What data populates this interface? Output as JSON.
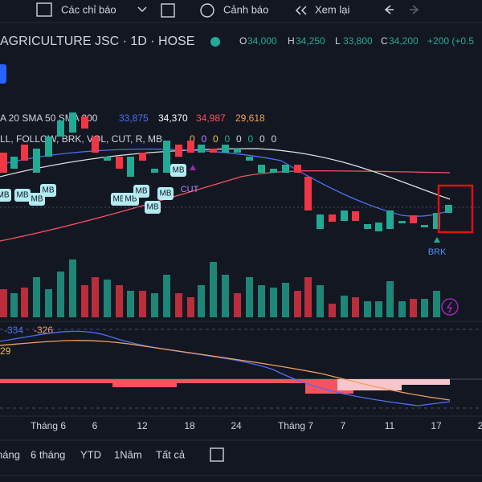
{
  "toolbar": {
    "indicators": "Các chỉ báo",
    "alerts": "Cảnh báo",
    "replay": "Xem lại"
  },
  "legend": {
    "symbol": "AGRICULTURE JSC · 1D · HOSE",
    "ohlc": [
      {
        "key": "O",
        "value": "34,000"
      },
      {
        "key": "H",
        "value": "34,250"
      },
      {
        "key": "L",
        "value": "33,800"
      },
      {
        "key": "C",
        "value": "34,200"
      }
    ],
    "change": "+200 (+0.5"
  },
  "indicators": {
    "ma_label": "A 20 SMA 50 SMA 200",
    "ma_values": [
      "33,875",
      "34,370",
      "34,987",
      "29,618"
    ],
    "signals_label": "LL, FOLLOW, BRK, VOL, CUT, R, MB",
    "signals_values": [
      "0",
      "0",
      "0",
      "0",
      "0",
      "0",
      "0",
      "0"
    ]
  },
  "markers": [
    "MB",
    "MB",
    "MB",
    "MB",
    "MB",
    "MB",
    "MB",
    "MB",
    "MB",
    "MB",
    "CUT",
    "BRK"
  ],
  "macd": [
    "-334",
    "-326",
    "29"
  ],
  "x_axis": [
    "Tháng 6",
    "6",
    "12",
    "18",
    "24",
    "Tháng 7",
    "7",
    "11",
    "17",
    "2"
  ],
  "ranges": [
    "háng",
    "6 tháng",
    "YTD",
    "1Năm",
    "Tất cả"
  ]
}
